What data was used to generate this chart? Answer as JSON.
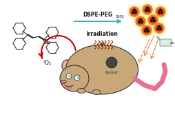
{
  "bg_color": "#ffffff",
  "arrow_color": "#4bacc6",
  "dspe_peg_label": "DSPE-PEG",
  "dspe_peg_subscript": "2000",
  "irradiation_label": "irradiation",
  "tumor_label": "tumor",
  "o2_triplet": "³O₂",
  "o2_singlet": "¹O₂",
  "mouse_body_color": "#c8a878",
  "mouse_outline": "#333333",
  "mouse_ear_color": "#e8c090",
  "tail_color": "#e87090",
  "nose_color": "#d88080",
  "tumor_color": "#333333",
  "nanoparticle_orange": "#e87820",
  "nanoparticle_red": "#cc2200",
  "nanoparticle_yellow": "#ffcc00",
  "irradiation_color": "#8B2200",
  "dashed_arrow_color": "#e87820",
  "red_arrow_color": "#cc0000",
  "structure_color": "#333333"
}
